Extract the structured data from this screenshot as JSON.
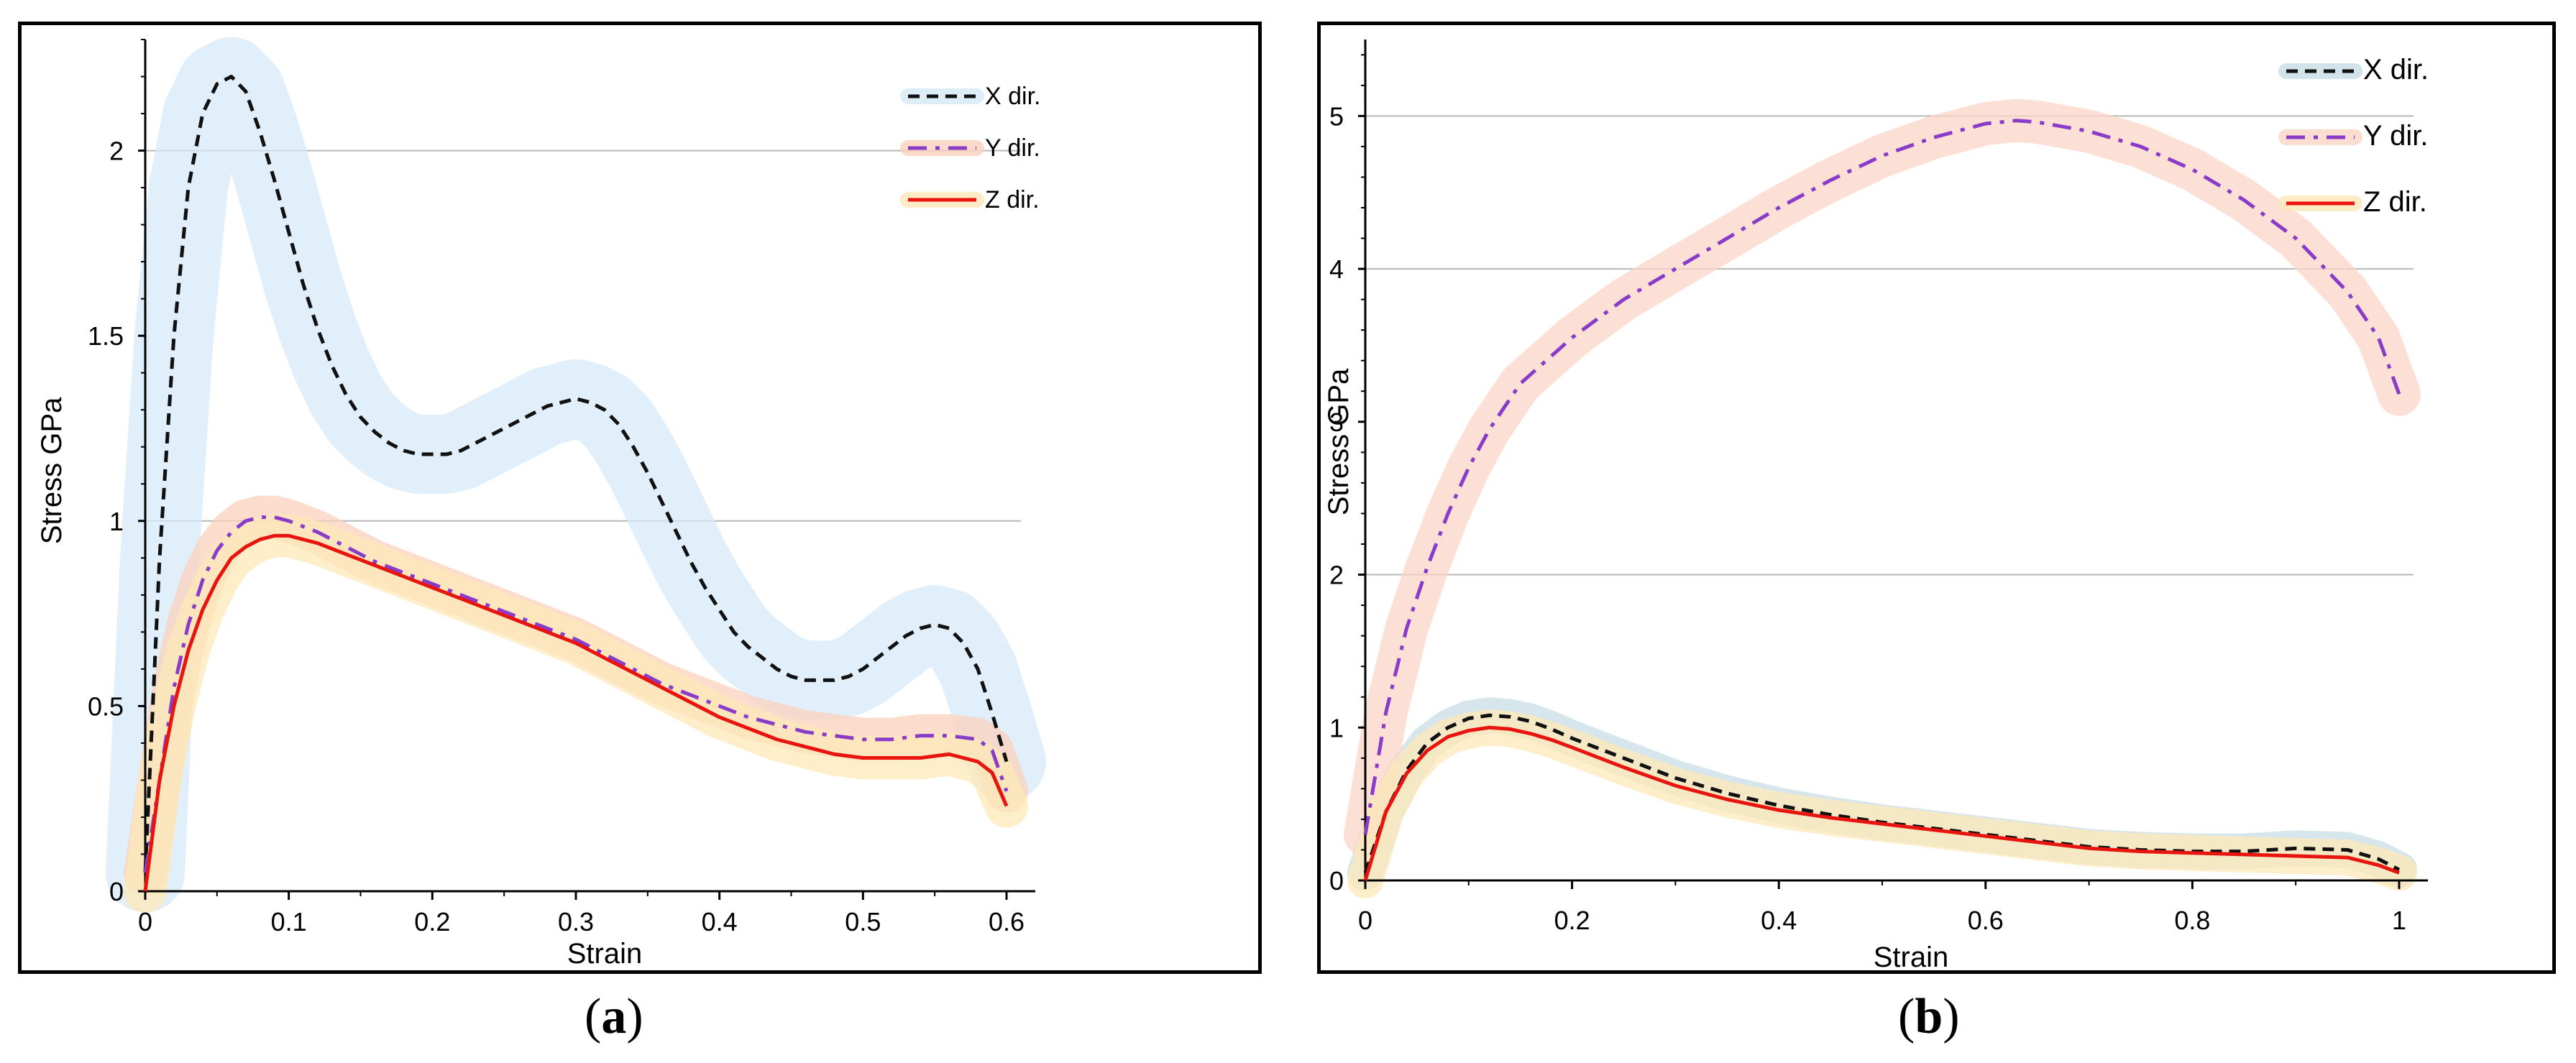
{
  "captions": {
    "a": "a",
    "b": "b"
  },
  "chart_data": [
    {
      "type": "line",
      "panel": "a",
      "xlabel": "Strain",
      "ylabel": "Stress GPa",
      "xlim": [
        0,
        0.6
      ],
      "ylim": [
        0,
        2.3
      ],
      "xticks": [
        "0",
        "0.1",
        "0.2",
        "0.3",
        "0.4",
        "0.5",
        "0.6"
      ],
      "xtick_values": [
        0,
        0.1,
        0.2,
        0.3,
        0.4,
        0.5,
        0.6
      ],
      "yticks": [
        "0",
        "0.5",
        "1",
        "1.5",
        "2"
      ],
      "ytick_values": [
        0,
        0.5,
        1,
        1.5,
        2
      ],
      "gridlines_y": [
        1,
        2
      ],
      "legend_position": "top-right",
      "series": [
        {
          "name": "X dir.",
          "color": "#111111",
          "dash": "dashed",
          "band_color": "#d6eaf8",
          "x": [
            0,
            0.01,
            0.02,
            0.03,
            0.04,
            0.05,
            0.06,
            0.07,
            0.08,
            0.09,
            0.1,
            0.11,
            0.12,
            0.13,
            0.14,
            0.15,
            0.16,
            0.17,
            0.18,
            0.19,
            0.2,
            0.21,
            0.22,
            0.23,
            0.24,
            0.25,
            0.26,
            0.27,
            0.28,
            0.29,
            0.3,
            0.31,
            0.32,
            0.33,
            0.34,
            0.35,
            0.36,
            0.37,
            0.38,
            0.39,
            0.4,
            0.41,
            0.42,
            0.43,
            0.44,
            0.45,
            0.46,
            0.47,
            0.48,
            0.49,
            0.5,
            0.51,
            0.52,
            0.53,
            0.54,
            0.55,
            0.56,
            0.57,
            0.58,
            0.59,
            0.6
          ],
          "y": [
            0.05,
            0.9,
            1.5,
            1.9,
            2.1,
            2.18,
            2.2,
            2.16,
            2.05,
            1.92,
            1.78,
            1.64,
            1.52,
            1.42,
            1.34,
            1.28,
            1.24,
            1.21,
            1.19,
            1.18,
            1.18,
            1.18,
            1.19,
            1.21,
            1.23,
            1.25,
            1.27,
            1.29,
            1.31,
            1.32,
            1.33,
            1.32,
            1.3,
            1.26,
            1.2,
            1.13,
            1.05,
            0.97,
            0.89,
            0.82,
            0.76,
            0.7,
            0.66,
            0.63,
            0.6,
            0.58,
            0.57,
            0.57,
            0.57,
            0.58,
            0.6,
            0.63,
            0.66,
            0.69,
            0.71,
            0.72,
            0.71,
            0.67,
            0.6,
            0.48,
            0.35
          ]
        },
        {
          "name": "Y dir.",
          "color": "#8a3cc9",
          "dash": "dashdot",
          "band_color": "#fbd1bc",
          "x": [
            0,
            0.01,
            0.02,
            0.03,
            0.04,
            0.05,
            0.06,
            0.07,
            0.08,
            0.09,
            0.1,
            0.12,
            0.14,
            0.16,
            0.18,
            0.2,
            0.22,
            0.24,
            0.26,
            0.28,
            0.3,
            0.32,
            0.34,
            0.36,
            0.38,
            0.4,
            0.42,
            0.44,
            0.46,
            0.48,
            0.5,
            0.52,
            0.54,
            0.56,
            0.58,
            0.59,
            0.6
          ],
          "y": [
            0.05,
            0.3,
            0.55,
            0.72,
            0.84,
            0.92,
            0.97,
            1.0,
            1.01,
            1.01,
            1.0,
            0.97,
            0.93,
            0.89,
            0.86,
            0.83,
            0.8,
            0.77,
            0.74,
            0.71,
            0.68,
            0.64,
            0.6,
            0.56,
            0.53,
            0.5,
            0.47,
            0.45,
            0.43,
            0.42,
            0.41,
            0.41,
            0.42,
            0.42,
            0.41,
            0.38,
            0.27
          ]
        },
        {
          "name": "Z dir.",
          "color": "#e8150f",
          "dash": "solid",
          "band_color": "#fde8b8",
          "x": [
            0,
            0.01,
            0.02,
            0.03,
            0.04,
            0.05,
            0.06,
            0.07,
            0.08,
            0.09,
            0.1,
            0.12,
            0.14,
            0.16,
            0.18,
            0.2,
            0.22,
            0.24,
            0.26,
            0.28,
            0.3,
            0.32,
            0.34,
            0.36,
            0.38,
            0.4,
            0.42,
            0.44,
            0.46,
            0.48,
            0.5,
            0.52,
            0.54,
            0.56,
            0.58,
            0.59,
            0.6
          ],
          "y": [
            0.0,
            0.3,
            0.5,
            0.65,
            0.76,
            0.84,
            0.9,
            0.93,
            0.95,
            0.96,
            0.96,
            0.94,
            0.91,
            0.88,
            0.85,
            0.82,
            0.79,
            0.76,
            0.73,
            0.7,
            0.67,
            0.63,
            0.59,
            0.55,
            0.51,
            0.47,
            0.44,
            0.41,
            0.39,
            0.37,
            0.36,
            0.36,
            0.36,
            0.37,
            0.35,
            0.32,
            0.23
          ]
        }
      ]
    },
    {
      "type": "line",
      "panel": "b",
      "xlabel": "Strain",
      "ylabel": "Stress GPa",
      "xlim": [
        0,
        1
      ],
      "ylim": [
        0,
        5.5
      ],
      "xticks": [
        "0",
        "0.2",
        "0.4",
        "0.6",
        "0.8",
        "1"
      ],
      "xtick_values": [
        0,
        0.2,
        0.4,
        0.6,
        0.8,
        1
      ],
      "yticks": [
        "0",
        "1",
        "2",
        "3",
        "4",
        "5"
      ],
      "ytick_values": [
        0,
        1,
        2,
        3,
        4,
        5
      ],
      "gridlines_y": [
        2,
        4,
        5
      ],
      "legend_position": "top-right",
      "series": [
        {
          "name": "X dir.",
          "color": "#111111",
          "dash": "dashed",
          "band_color": "#c9dde6",
          "x": [
            0,
            0.02,
            0.04,
            0.06,
            0.08,
            0.1,
            0.12,
            0.14,
            0.16,
            0.18,
            0.2,
            0.25,
            0.3,
            0.35,
            0.4,
            0.45,
            0.5,
            0.55,
            0.6,
            0.65,
            0.7,
            0.75,
            0.8,
            0.85,
            0.9,
            0.95,
            0.98,
            1.0
          ],
          "y": [
            0.05,
            0.45,
            0.72,
            0.9,
            1.0,
            1.06,
            1.08,
            1.07,
            1.04,
            0.99,
            0.93,
            0.8,
            0.67,
            0.57,
            0.49,
            0.43,
            0.38,
            0.34,
            0.3,
            0.26,
            0.22,
            0.2,
            0.19,
            0.19,
            0.21,
            0.2,
            0.14,
            0.07
          ]
        },
        {
          "name": "Y dir.",
          "color": "#8a3cc9",
          "dash": "dashdot",
          "band_color": "#fbd5c8",
          "x": [
            0,
            0.02,
            0.04,
            0.06,
            0.08,
            0.1,
            0.12,
            0.15,
            0.2,
            0.25,
            0.3,
            0.35,
            0.4,
            0.45,
            0.5,
            0.55,
            0.6,
            0.63,
            0.65,
            0.7,
            0.75,
            0.8,
            0.85,
            0.9,
            0.95,
            0.98,
            1.0
          ],
          "y": [
            0.3,
            1.1,
            1.65,
            2.05,
            2.4,
            2.7,
            2.95,
            3.25,
            3.55,
            3.8,
            4.0,
            4.2,
            4.4,
            4.58,
            4.74,
            4.86,
            4.95,
            4.97,
            4.96,
            4.9,
            4.8,
            4.65,
            4.45,
            4.2,
            3.85,
            3.55,
            3.18
          ]
        },
        {
          "name": "Z dir.",
          "color": "#e8150f",
          "dash": "solid",
          "band_color": "#fde8b8",
          "x": [
            0,
            0.02,
            0.04,
            0.06,
            0.08,
            0.1,
            0.12,
            0.14,
            0.16,
            0.18,
            0.2,
            0.25,
            0.3,
            0.35,
            0.4,
            0.45,
            0.5,
            0.55,
            0.6,
            0.65,
            0.7,
            0.75,
            0.8,
            0.85,
            0.9,
            0.95,
            0.98,
            1.0
          ],
          "y": [
            0.0,
            0.45,
            0.7,
            0.85,
            0.94,
            0.98,
            1.0,
            0.99,
            0.96,
            0.92,
            0.87,
            0.74,
            0.62,
            0.53,
            0.46,
            0.41,
            0.37,
            0.33,
            0.29,
            0.25,
            0.21,
            0.19,
            0.18,
            0.17,
            0.16,
            0.15,
            0.1,
            0.05
          ]
        }
      ]
    }
  ]
}
